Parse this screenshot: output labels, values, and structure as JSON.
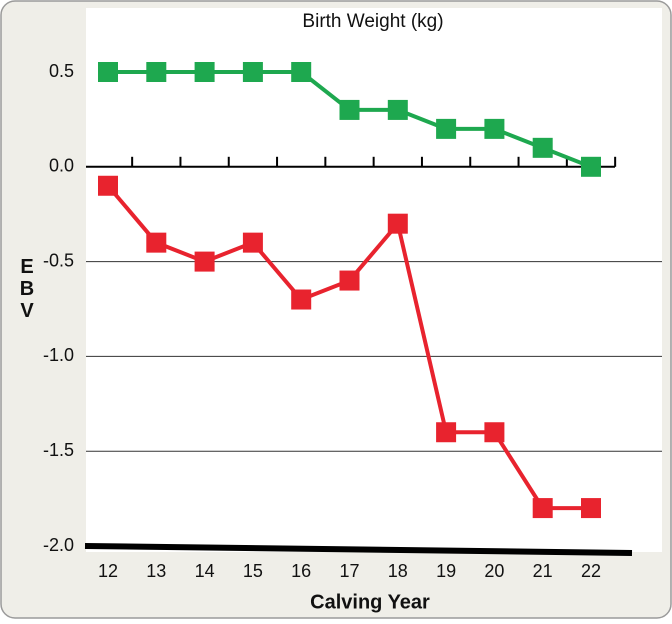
{
  "chart_data": {
    "type": "line",
    "title": "Birth Weight (kg)",
    "xlabel": "Calving Year",
    "ylabel": "EBV",
    "categories": [
      "12",
      "13",
      "14",
      "15",
      "16",
      "17",
      "18",
      "19",
      "20",
      "21",
      "22"
    ],
    "series": [
      {
        "color": "#1ea84f",
        "values": [
          0.5,
          0.5,
          0.5,
          0.5,
          0.5,
          0.3,
          0.3,
          0.2,
          0.2,
          0.1,
          0.0
        ]
      },
      {
        "color": "#e8232e",
        "values": [
          -0.1,
          -0.4,
          -0.5,
          -0.4,
          -0.7,
          -0.6,
          -0.3,
          -1.4,
          -1.4,
          -1.8,
          -1.8
        ]
      }
    ],
    "ylim": [
      -2.0,
      0.5
    ],
    "yticks": [
      0.5,
      {
        "value": 0,
        "label": "0.0"
      },
      -0.5,
      {
        "value": -1,
        "label": "-1.0"
      },
      -1.5,
      {
        "value": -2,
        "label": "-2.0"
      }
    ],
    "grid": true
  }
}
